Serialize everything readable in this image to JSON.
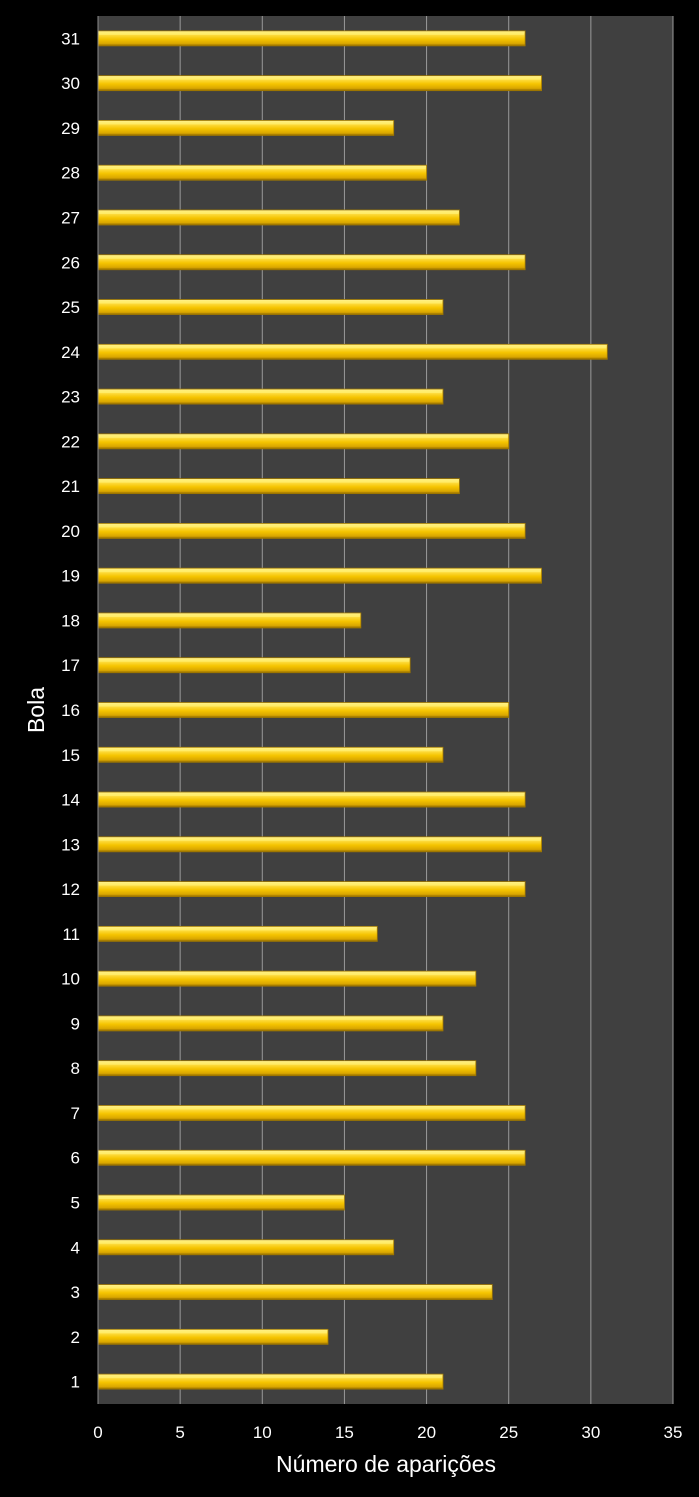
{
  "chart_data": {
    "type": "bar",
    "orientation": "horizontal",
    "title": "",
    "xlabel": "Número de aparições",
    "ylabel": "Bola",
    "xlim": [
      0,
      35
    ],
    "x_ticks": [
      0,
      5,
      10,
      15,
      20,
      25,
      30,
      35
    ],
    "grid": true,
    "categories": [
      "1",
      "2",
      "3",
      "4",
      "5",
      "6",
      "7",
      "8",
      "9",
      "10",
      "11",
      "12",
      "13",
      "14",
      "15",
      "16",
      "17",
      "18",
      "19",
      "20",
      "21",
      "22",
      "23",
      "24",
      "25",
      "26",
      "27",
      "28",
      "29",
      "30",
      "31"
    ],
    "values": [
      21,
      14,
      24,
      18,
      15,
      26,
      26,
      23,
      21,
      23,
      17,
      26,
      27,
      26,
      21,
      25,
      19,
      16,
      27,
      26,
      22,
      25,
      21,
      31,
      21,
      26,
      22,
      20,
      18,
      27,
      26
    ],
    "colors": {
      "background": "#000000",
      "plot_area": "#404040",
      "grid": "#9a9a9a",
      "bar_light": "#fff176",
      "bar_main": "#f5c400",
      "bar_dark": "#a07800",
      "text": "#ffffff"
    }
  }
}
